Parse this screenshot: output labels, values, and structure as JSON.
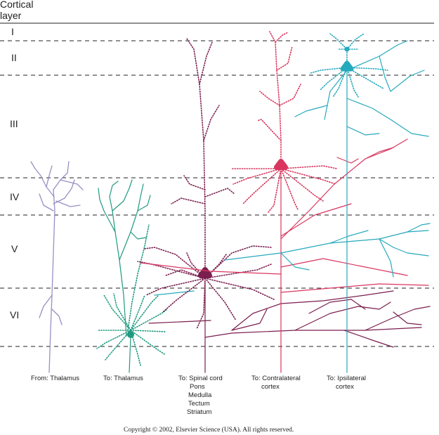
{
  "header": {
    "line1": "Cortical",
    "line2": "layer"
  },
  "layers": [
    "I",
    "II",
    "III",
    "IV",
    "V",
    "VI"
  ],
  "captions": {
    "thalamus_in": "From: Thalamus",
    "thalamus_out": "To: Thalamus",
    "spinal": [
      "To: Spinal cord",
      "Pons",
      "Medulla",
      "Tectum",
      "Striatum"
    ],
    "contra": [
      "To: Contralateral",
      "cortex"
    ],
    "ipsi": [
      "To: Ipsilateral",
      "cortex"
    ]
  },
  "copyright": "Copyright © 2002, Elsevier Science (USA). All rights reserved.",
  "colors": {
    "thalamic_afferent": "#9a8fc4",
    "thalamic_projection": "#1f9a80",
    "spinal_projection": "#7a1e4e",
    "contralateral": "#d9365f",
    "ipsilateral": "#26a9bd",
    "layer_line": "#222222"
  }
}
